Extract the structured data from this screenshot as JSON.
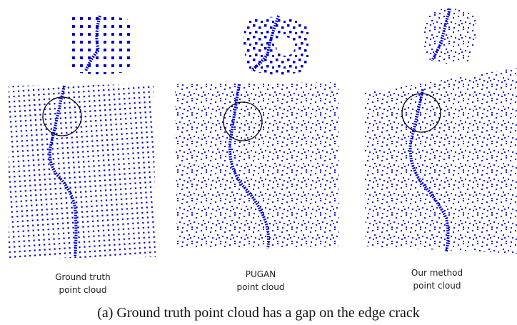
{
  "panels": [
    {
      "line1": "Ground truth",
      "line2": "point cloud"
    },
    {
      "line1": "PUGAN",
      "line2": "point cloud"
    },
    {
      "line1": "Our method",
      "line2": "point cloud"
    }
  ],
  "caption": "(a) Ground truth point cloud has a gap on the edge crack"
}
